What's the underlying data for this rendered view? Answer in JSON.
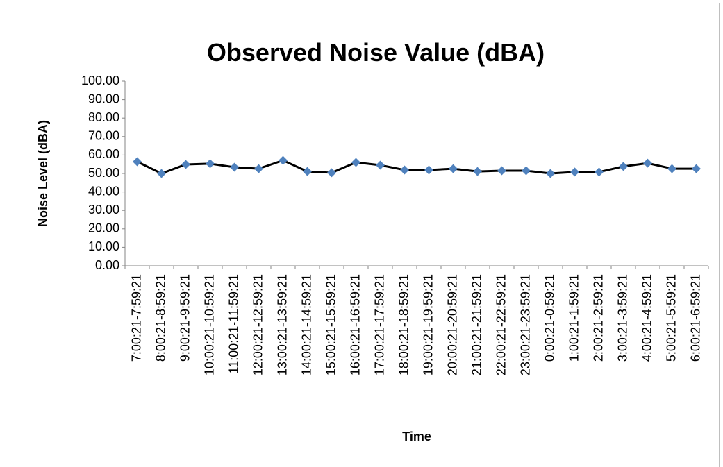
{
  "chart_data": {
    "type": "line",
    "title": "Observed Noise Value (dBA)",
    "x_label": "Time",
    "y_label": "Noise Level (dBA)",
    "categories": [
      "7:00:21-7:59:21",
      "8:00:21-8:59:21",
      "9:00:21-9:59:21",
      "10:00:21-10:59:21",
      "11:00:21-11:59:21",
      "12:00:21-12:59:21",
      "13:00:21-13:59:21",
      "14:00:21-14:59:21",
      "15:00:21-15:59:21",
      "16:00:21-16:59:21",
      "17:00:21-17:59:21",
      "18:00:21-18:59:21",
      "19:00:21-19:59:21",
      "20:00:21-20:59:21",
      "21:00:21-21:59:21",
      "22:00:21-22:59:21",
      "23:00:21-23:59:21",
      "0:00:21-0:59:21",
      "1:00:21-1:59:21",
      "2:00:21-2:59:21",
      "3:00:21-3:59:21",
      "4:00:21-4:59:21",
      "5:00:21-5:59:21",
      "6:00:21-6:59:21"
    ],
    "values": [
      56.4,
      50.0,
      54.9,
      55.3,
      53.4,
      52.6,
      57.1,
      51.1,
      50.4,
      56.0,
      54.5,
      51.9,
      51.9,
      52.6,
      51.1,
      51.5,
      51.5,
      50.0,
      50.8,
      50.8,
      53.8,
      55.6,
      52.6,
      52.6
    ],
    "line_color": "#000000",
    "marker_color": "#4f81bd",
    "ylim": [
      0,
      100
    ],
    "yticks": [
      {
        "value": 0,
        "label": "0.00"
      },
      {
        "value": 10,
        "label": "10.00"
      },
      {
        "value": 20,
        "label": "20.00"
      },
      {
        "value": 30,
        "label": "30.00"
      },
      {
        "value": 40,
        "label": "40.00"
      },
      {
        "value": 50,
        "label": "50.00"
      },
      {
        "value": 60,
        "label": "60.00"
      },
      {
        "value": 70,
        "label": "70.00"
      },
      {
        "value": 80,
        "label": "80.00"
      },
      {
        "value": 90,
        "label": "90.00"
      },
      {
        "value": 100,
        "label": "100.00"
      }
    ],
    "grid": false
  }
}
